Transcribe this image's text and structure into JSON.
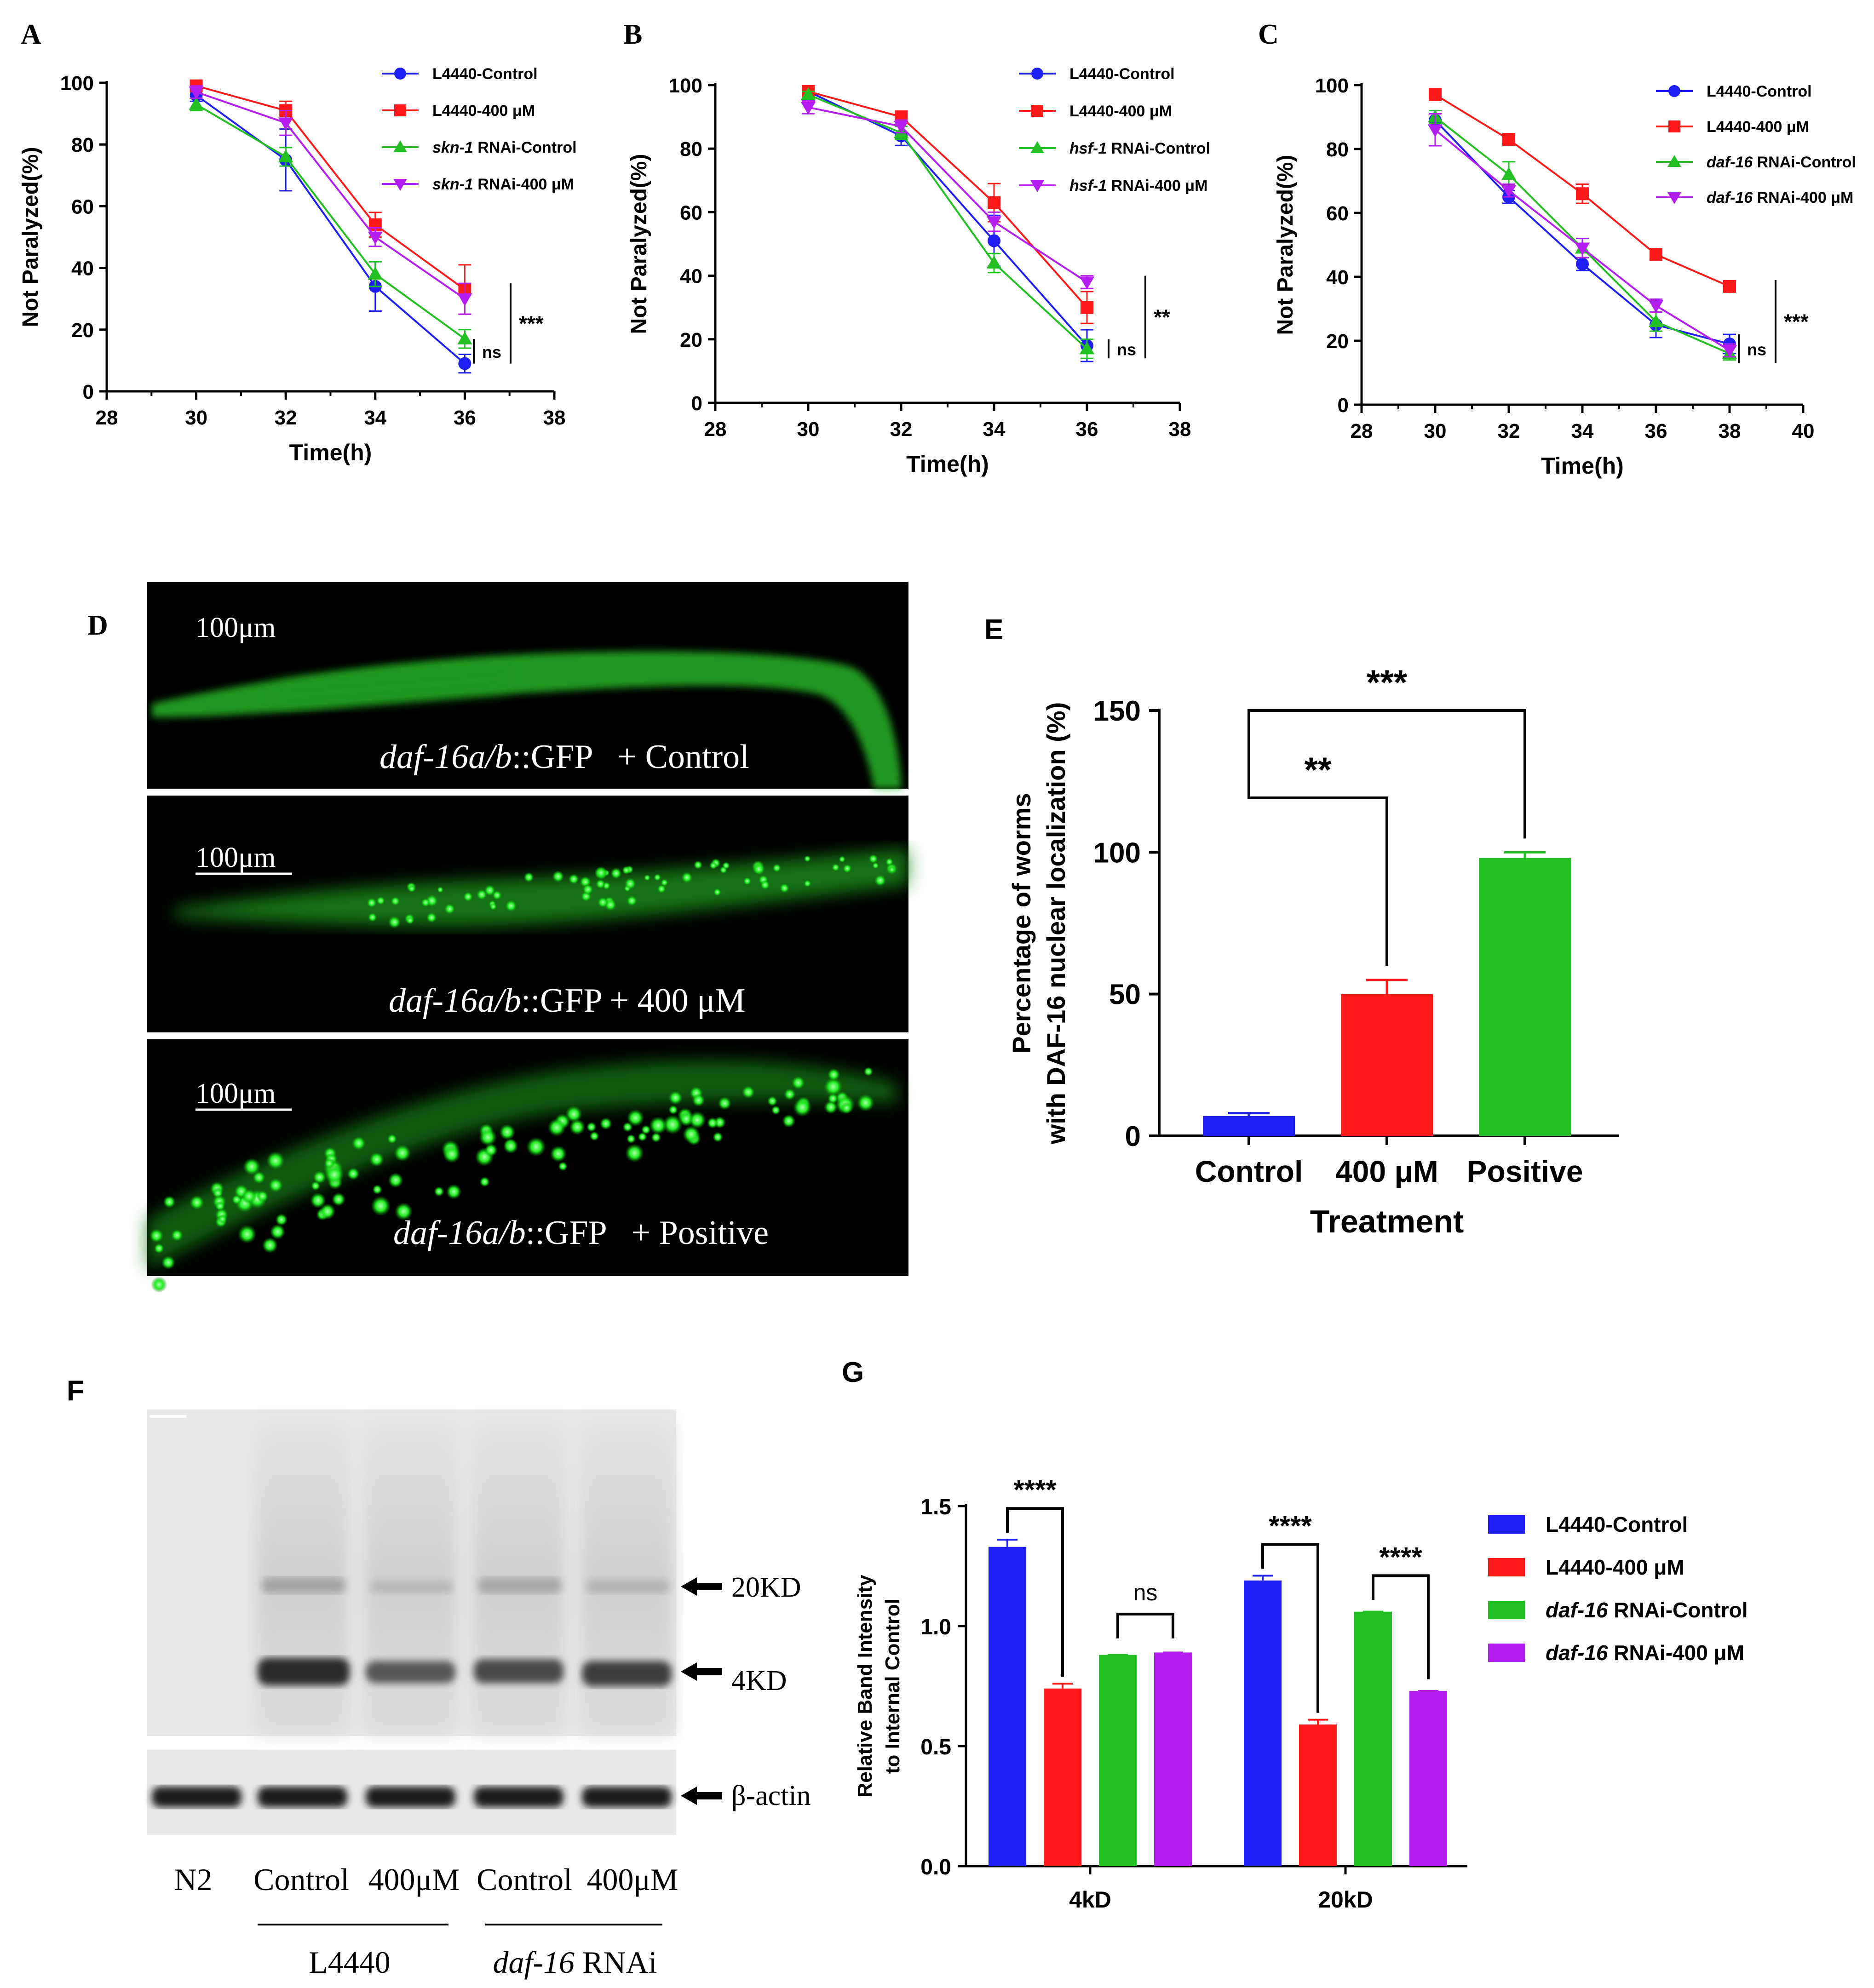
{
  "colors": {
    "blue": "#1f1ff5",
    "red": "#ff1a1a",
    "green": "#22c022",
    "purple": "#b41ef0",
    "gfp": "#22ee22",
    "black": "#000000"
  },
  "panels": {
    "A": "A",
    "B": "B",
    "C": "C",
    "D": "D",
    "E": "E",
    "F": "F",
    "G": "G"
  },
  "chart_data": [
    {
      "panel": "A",
      "type": "line",
      "xlabel": "Time(h)",
      "ylabel": "Not Paralyzed(%)",
      "xlim": [
        28,
        38
      ],
      "ylim": [
        0,
        100
      ],
      "xticks": [
        28,
        30,
        32,
        34,
        36,
        38
      ],
      "yticks": [
        0,
        20,
        40,
        60,
        80,
        100
      ],
      "x": [
        30,
        32,
        34,
        36
      ],
      "series": [
        {
          "name_italic": "",
          "name": "L4440-Control",
          "color": "blue",
          "marker": "circle",
          "values": [
            96,
            75,
            34,
            9
          ],
          "errors": [
            2,
            10,
            8,
            3
          ]
        },
        {
          "name_italic": "",
          "name": "L4440-400 μM",
          "color": "red",
          "marker": "square",
          "values": [
            99,
            91,
            54,
            33
          ],
          "errors": [
            1,
            3,
            4,
            8
          ]
        },
        {
          "name_italic": "skn-1",
          "name": " RNAi-Control",
          "color": "green",
          "marker": "triangle-up",
          "values": [
            93,
            76,
            38,
            17
          ],
          "errors": [
            2,
            3,
            4,
            3
          ]
        },
        {
          "name_italic": "skn-1",
          "name": " RNAi-400 μM",
          "color": "purple",
          "marker": "triangle-down",
          "values": [
            97,
            87,
            50,
            30
          ],
          "errors": [
            2,
            4,
            3,
            5
          ]
        }
      ],
      "annotations": [
        {
          "text": "ns",
          "y_range": [
            9,
            17
          ]
        },
        {
          "text": "***",
          "y_range": [
            9,
            35
          ]
        }
      ]
    },
    {
      "panel": "B",
      "type": "line",
      "xlabel": "Time(h)",
      "ylabel": "Not Paralyzed(%)",
      "xlim": [
        28,
        38
      ],
      "ylim": [
        0,
        100
      ],
      "xticks": [
        28,
        30,
        32,
        34,
        36,
        38
      ],
      "yticks": [
        0,
        20,
        40,
        60,
        80,
        100
      ],
      "x": [
        30,
        32,
        34,
        36
      ],
      "series": [
        {
          "name_italic": "",
          "name": "L4440-Control",
          "color": "blue",
          "marker": "circle",
          "values": [
            98,
            84,
            51,
            18
          ],
          "errors": [
            1,
            3,
            8,
            5
          ]
        },
        {
          "name_italic": "",
          "name": "L4440-400 μM",
          "color": "red",
          "marker": "square",
          "values": [
            98,
            90,
            63,
            30
          ],
          "errors": [
            1,
            1,
            6,
            5
          ]
        },
        {
          "name_italic": "hsf-1",
          "name": " RNAi-Control",
          "color": "green",
          "marker": "triangle-up",
          "values": [
            97,
            85,
            44,
            17
          ],
          "errors": [
            1,
            2,
            3,
            3
          ]
        },
        {
          "name_italic": "hsf-1",
          "name": " RNAi-400 μM",
          "color": "purple",
          "marker": "triangle-down",
          "values": [
            93,
            87,
            57,
            38
          ],
          "errors": [
            2,
            2,
            3,
            2
          ]
        }
      ],
      "annotations": [
        {
          "text": "ns",
          "y_range": [
            14,
            20
          ]
        },
        {
          "text": "**",
          "y_range": [
            14,
            40
          ]
        }
      ]
    },
    {
      "panel": "C",
      "type": "line",
      "xlabel": "Time(h)",
      "ylabel": "Not Paralyzed(%)",
      "xlim": [
        28,
        40
      ],
      "ylim": [
        0,
        100
      ],
      "xticks": [
        28,
        30,
        32,
        34,
        36,
        38,
        40
      ],
      "yticks": [
        0,
        20,
        40,
        60,
        80,
        100
      ],
      "x": [
        30,
        32,
        34,
        36,
        38
      ],
      "series": [
        {
          "name_italic": "",
          "name": "L4440-Control",
          "color": "blue",
          "marker": "circle",
          "values": [
            89,
            65,
            44,
            25,
            19
          ],
          "errors": [
            2,
            2,
            2,
            4,
            3
          ]
        },
        {
          "name_italic": "",
          "name": "L4440-400 μM",
          "color": "red",
          "marker": "square",
          "values": [
            97,
            83,
            66,
            47,
            37
          ],
          "errors": [
            1,
            1,
            3,
            1,
            1
          ]
        },
        {
          "name_italic": "daf-16",
          "name": " RNAi-Control",
          "color": "green",
          "marker": "triangle-up",
          "values": [
            90,
            72,
            49,
            26,
            16
          ],
          "errors": [
            2,
            4,
            3,
            3,
            2
          ]
        },
        {
          "name_italic": "daf-16",
          "name": " RNAi-400 μM",
          "color": "purple",
          "marker": "triangle-down",
          "values": [
            86,
            67,
            49,
            31,
            17
          ],
          "errors": [
            5,
            2,
            3,
            2,
            2
          ]
        }
      ],
      "annotations": [
        {
          "text": "ns",
          "y_range": [
            13,
            22
          ]
        },
        {
          "text": "***",
          "y_range": [
            13,
            39
          ]
        }
      ]
    },
    {
      "panel": "E",
      "type": "bar",
      "xlabel": "Treatment",
      "ylabel_line1": "Percentage of worms",
      "ylabel_line2": "with DAF-16 nuclear localization (%)",
      "categories": [
        "Control",
        "400 μM",
        "Positive"
      ],
      "values": [
        7,
        50,
        98
      ],
      "errors": [
        1,
        5,
        2
      ],
      "colors": [
        "blue",
        "red",
        "green"
      ],
      "ylim": [
        0,
        150
      ],
      "yticks": [
        0,
        50,
        100,
        150
      ],
      "comparisons": [
        {
          "from": 0,
          "to": 1,
          "label": "**",
          "level": 120
        },
        {
          "from": 0,
          "to": 2,
          "label": "***",
          "level": 150
        }
      ]
    },
    {
      "panel": "G",
      "type": "bar",
      "ylabel_line1": "Relative Band Intensity",
      "ylabel_line2": "to Internal Control",
      "categories": [
        "4kD",
        "20kD"
      ],
      "ylim": [
        0,
        1.5
      ],
      "yticks": [
        "0.0",
        "0.5",
        "1.0",
        "1.5"
      ],
      "series": [
        {
          "name_italic": "",
          "name": "L4440-Control",
          "color": "blue",
          "values": [
            1.33,
            1.19
          ],
          "errors": [
            0.03,
            0.02
          ]
        },
        {
          "name_italic": "",
          "name": "L4440-400 μM",
          "color": "red",
          "values": [
            0.74,
            0.59
          ],
          "errors": [
            0.02,
            0.02
          ]
        },
        {
          "name_italic": "daf-16",
          "name": " RNAi-Control",
          "color": "green",
          "values": [
            0.88,
            1.06
          ],
          "errors": [
            0.04,
            0.02
          ]
        },
        {
          "name_italic": "daf-16",
          "name": " RNAi-400 μM",
          "color": "purple",
          "values": [
            0.89,
            0.73
          ],
          "errors": [
            0.03,
            0.02
          ]
        }
      ],
      "comparisons": [
        {
          "group": 0,
          "a": 0,
          "b": 1,
          "label": "****"
        },
        {
          "group": 0,
          "a": 2,
          "b": 3,
          "label": "ns"
        },
        {
          "group": 1,
          "a": 0,
          "b": 1,
          "label": "****"
        },
        {
          "group": 1,
          "a": 2,
          "b": 3,
          "label": "****"
        }
      ]
    }
  ],
  "micrographs": [
    {
      "scale": "100μm",
      "label_italic": "daf-16a/b",
      "label_rest": "::GFP   + Control"
    },
    {
      "scale": "100μm",
      "label_italic": "daf-16a/b",
      "label_rest": "::GFP + 400 μM"
    },
    {
      "scale": "100μm",
      "label_italic": "daf-16a/b",
      "label_rest": "::GFP   + Positive"
    }
  ],
  "western": {
    "markers": [
      "20KD",
      "4KD",
      "β-actin"
    ],
    "lanes": [
      "N2",
      "Control",
      "400μM",
      "Control",
      "400μM"
    ],
    "group1": "L4440",
    "group2_italic": "daf-16",
    "group2_rest": " RNAi"
  }
}
